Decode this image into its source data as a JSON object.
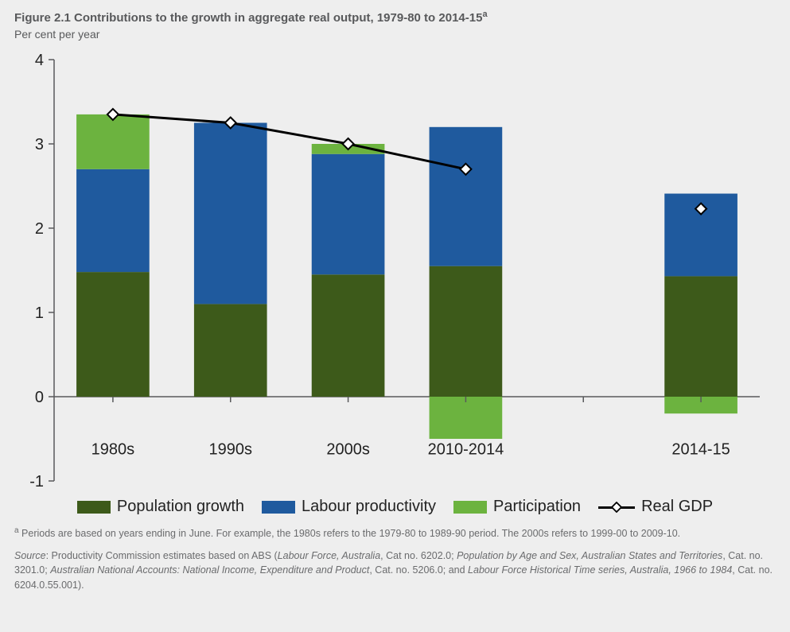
{
  "title_prefix": "Figure 2.1 Contributions to the growth in aggregate real output, 1979-80 to 2014-15",
  "title_sup": "a",
  "subtitle": "Per cent per year",
  "chart": {
    "type": "stacked-bar-with-line",
    "background_color": "#eeeeee",
    "axis_color": "#58595b",
    "axis_width": 1.5,
    "tick_label_fontsize": 20,
    "tick_label_color": "#222222",
    "category_label_fontsize": 20,
    "category_label_color": "#222222",
    "ylim": [
      -1,
      4
    ],
    "ytick_step": 1,
    "categories": [
      "1980s",
      "1990s",
      "2000s",
      "2010-2014",
      "2014-15"
    ],
    "gap_after_index": 3,
    "series": [
      {
        "key": "population",
        "label": "Population growth",
        "color": "#3d5a1a"
      },
      {
        "key": "labour",
        "label": "Labour productivity",
        "color": "#1f5a9e"
      },
      {
        "key": "particip",
        "label": "Participation",
        "color": "#6cb33f"
      }
    ],
    "stacks": [
      {
        "population": 1.48,
        "labour": 1.22,
        "particip": 0.65
      },
      {
        "population": 1.1,
        "labour": 2.15,
        "particip": 0.0
      },
      {
        "population": 1.45,
        "labour": 1.43,
        "particip": 0.12
      },
      {
        "population": 1.55,
        "labour": 1.65,
        "particip": -0.5
      },
      {
        "population": 1.43,
        "labour": 0.98,
        "particip": -0.2
      }
    ],
    "line": {
      "label": "Real GDP",
      "color": "#000000",
      "width": 3,
      "marker_fill": "#ffffff",
      "marker_stroke": "#000000",
      "marker_size": 7,
      "values": [
        3.35,
        3.25,
        3.0,
        2.7,
        2.23
      ],
      "connect_upto_index": 3
    },
    "bar_rel_width": 0.62,
    "label_offset_below_zero": 0.62
  },
  "legend": {
    "population": "Population growth",
    "labour": "Labour productivity",
    "particip": "Participation",
    "real_gdp": "Real GDP"
  },
  "footnote_sup": "a",
  "footnote_text": " Periods are based on years ending in June. For example, the 1980s refers to the 1979-80 to 1989-90 period. The 2000s refers to 1999-00 to 2009-10.",
  "source_label": "Source",
  "source_prefix": ": Productivity Commission estimates based on ABS (",
  "source_items": [
    {
      "ital": "Labour Force, Australia",
      "plain": ", Cat no. 6202.0; "
    },
    {
      "ital": "Population by Age and Sex, Australian States and Territories",
      "plain": ", Cat. no. 3201.0; "
    },
    {
      "ital": "Australian National Accounts: National Income, Expenditure and Product",
      "plain": ", Cat. no. 5206.0; and "
    },
    {
      "ital": "Labour Force Historical Time series, Australia, 1966 to 1984",
      "plain": ", Cat. no. 6204.0.55.001)."
    }
  ]
}
